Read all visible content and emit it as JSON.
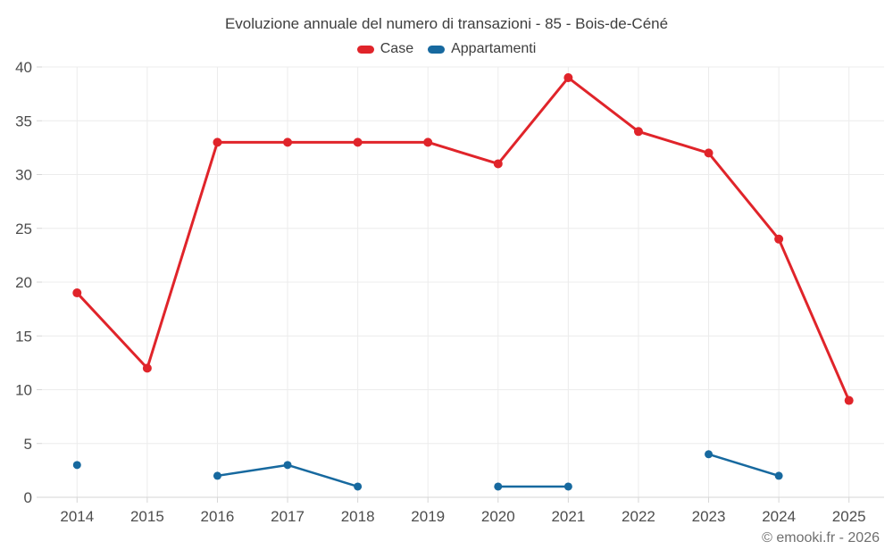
{
  "page": {
    "footer_credit": "© emooki.fr - 2026"
  },
  "colors": {
    "case_red": "#e0242a",
    "appartamenti_blue": "#17699f",
    "grid": "#ececec",
    "axis": "#d6d6d6",
    "tick_label": "#4d4d4d",
    "title_text": "#3e3e3e",
    "footer_text": "#6f6f6f"
  },
  "chart_data": {
    "type": "line",
    "title": "Evoluzione annuale del numero di transazioni - 85 - Bois-de-Céné",
    "xlabel": "",
    "ylabel": "",
    "categories": [
      "2014",
      "2015",
      "2016",
      "2017",
      "2018",
      "2019",
      "2020",
      "2021",
      "2022",
      "2023",
      "2024",
      "2025"
    ],
    "series": [
      {
        "name": "Case",
        "color": "#e0242a",
        "line_width": 3,
        "marker_radius": 5,
        "values": [
          19,
          12,
          33,
          33,
          33,
          33,
          31,
          39,
          34,
          32,
          24,
          9
        ]
      },
      {
        "name": "Appartamenti",
        "color": "#17699f",
        "line_width": 2.5,
        "marker_radius": 4.5,
        "values": [
          3,
          null,
          2,
          3,
          1,
          null,
          1,
          1,
          null,
          4,
          2,
          null
        ]
      }
    ],
    "ylim": [
      0,
      40
    ],
    "ytick_step": 5,
    "grid": true,
    "legend_position": "top"
  }
}
